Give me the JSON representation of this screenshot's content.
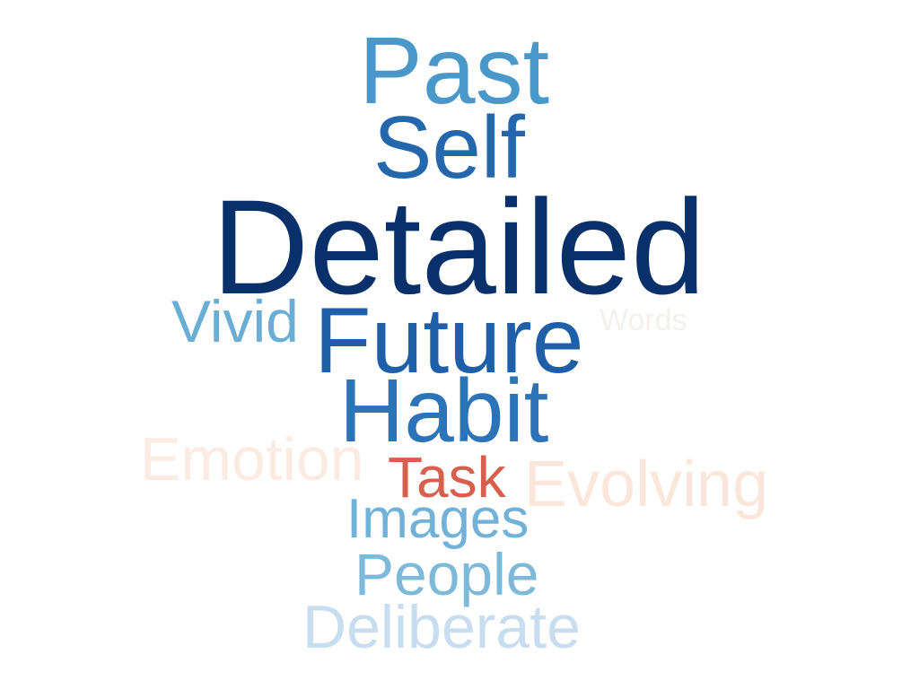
{
  "words": [
    {
      "key": "past",
      "text": "Past",
      "color": "#4a98c9"
    },
    {
      "key": "self",
      "text": "Self",
      "color": "#2467ad"
    },
    {
      "key": "detailed",
      "text": "Detailed",
      "color": "#08306b"
    },
    {
      "key": "vivid",
      "text": "Vivid",
      "color": "#6aaed6"
    },
    {
      "key": "future",
      "text": "Future",
      "color": "#1f5fa8"
    },
    {
      "key": "words",
      "text": "Words",
      "color": "#f4f0ee"
    },
    {
      "key": "habit",
      "text": "Habit",
      "color": "#2d73b8"
    },
    {
      "key": "emotion",
      "text": "Emotion",
      "color": "#fbebe2"
    },
    {
      "key": "task",
      "text": "Task",
      "color": "#d6604d"
    },
    {
      "key": "evolving",
      "text": "Evolving",
      "color": "#fbe6db"
    },
    {
      "key": "images",
      "text": "Images",
      "color": "#72b2d8"
    },
    {
      "key": "people",
      "text": "People",
      "color": "#7fb9da"
    },
    {
      "key": "deliberate",
      "text": "Deliberate",
      "color": "#c8ddef"
    }
  ]
}
